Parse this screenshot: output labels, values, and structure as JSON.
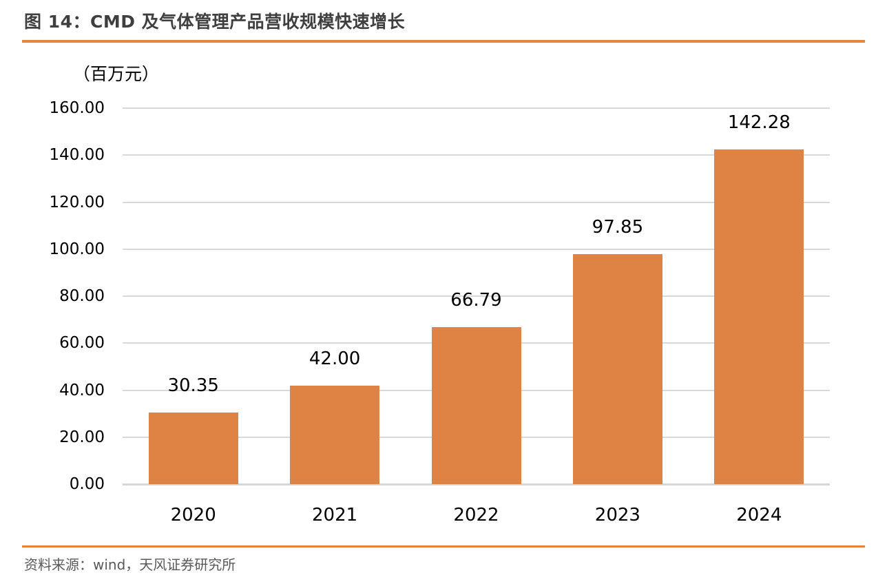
{
  "header": {
    "title": "图 14：CMD 及气体管理产品营收规模快速增长"
  },
  "footer": {
    "source": "资料来源：wind，天风证券研究所"
  },
  "colors": {
    "bar_orange": "#DE8344",
    "rule_orange": "#E5823B",
    "grid_gray": "#D9D9D9",
    "title_gray": "#3F3F3F",
    "source_gray": "#595959",
    "label_black": "#000000"
  },
  "chart_data": {
    "type": "bar",
    "title": "图 14：CMD 及气体管理产品营收规模快速增长",
    "unit_label": "（百万元）",
    "categories": [
      "2020",
      "2021",
      "2022",
      "2023",
      "2024"
    ],
    "values": [
      30.35,
      42.0,
      66.79,
      97.85,
      142.28
    ],
    "value_labels": [
      "30.35",
      "42.00",
      "66.79",
      "97.85",
      "142.28"
    ],
    "xlabel": "",
    "ylabel": "（百万元）",
    "ylim": [
      0,
      160
    ],
    "ytick_step": 20,
    "yticks": [
      "0.00",
      "20.00",
      "40.00",
      "60.00",
      "80.00",
      "100.00",
      "120.00",
      "140.00",
      "160.00"
    ],
    "grid": true,
    "legend_position": "none",
    "bar_color": "#DE8344",
    "source_note": "资料来源：wind，天风证券研究所"
  }
}
